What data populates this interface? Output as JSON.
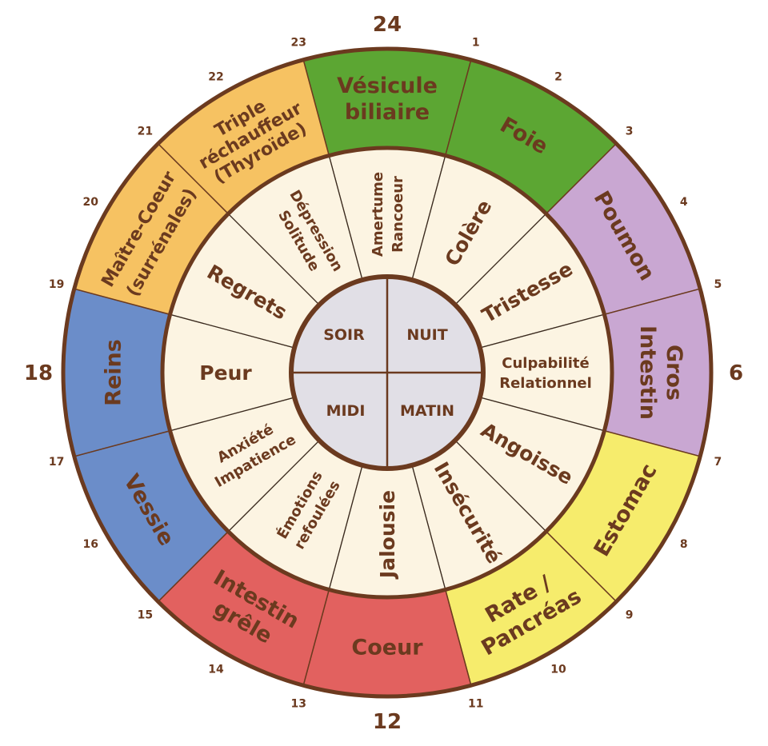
{
  "colors": {
    "brown": "#6b3a1f",
    "cream": "#fcf4e2",
    "center": "#e1dfe6",
    "green": "#5ca633",
    "purple": "#c9a7d2",
    "yellow": "#f6ec6c",
    "red": "#e2615f",
    "blue": "#6b8dc9",
    "orange": "#f6c262"
  },
  "organs": [
    {
      "hour": 0,
      "lines": [
        "Vésicule",
        "biliaire"
      ],
      "color": "green"
    },
    {
      "hour": 2,
      "lines": [
        "Foie"
      ],
      "color": "green"
    },
    {
      "hour": 4,
      "lines": [
        "Poumon"
      ],
      "color": "purple"
    },
    {
      "hour": 6,
      "lines": [
        "Gros",
        "Intestin"
      ],
      "color": "purple"
    },
    {
      "hour": 8,
      "lines": [
        "Estomac"
      ],
      "color": "yellow"
    },
    {
      "hour": 10,
      "lines": [
        "Rate /",
        "Pancréas"
      ],
      "color": "yellow"
    },
    {
      "hour": 12,
      "lines": [
        "Coeur"
      ],
      "color": "red"
    },
    {
      "hour": 14,
      "lines": [
        "Intestin",
        "grêle"
      ],
      "color": "red"
    },
    {
      "hour": 16,
      "lines": [
        "Vessie"
      ],
      "color": "blue"
    },
    {
      "hour": 18,
      "lines": [
        "Reins"
      ],
      "color": "blue"
    },
    {
      "hour": 20,
      "lines": [
        "Maître-Coeur",
        "(surrénales)"
      ],
      "color": "orange"
    },
    {
      "hour": 22,
      "lines": [
        "Triple",
        "réchauffeur",
        "(Thyroïde)"
      ],
      "color": "orange"
    }
  ],
  "emotions": [
    {
      "hour": 0,
      "lines": [
        "Amertume",
        "Rancoeur"
      ]
    },
    {
      "hour": 2,
      "lines": [
        "Colère"
      ]
    },
    {
      "hour": 4,
      "lines": [
        "Tristesse"
      ]
    },
    {
      "hour": 6,
      "lines": [
        "Culpabilité",
        "Relationnel"
      ]
    },
    {
      "hour": 8,
      "lines": [
        "Angoisse"
      ]
    },
    {
      "hour": 10,
      "lines": [
        "Insécurité"
      ]
    },
    {
      "hour": 12,
      "lines": [
        "Jalousie"
      ]
    },
    {
      "hour": 14,
      "lines": [
        "Émotions",
        "refoulées"
      ]
    },
    {
      "hour": 16,
      "lines": [
        "Anxiété",
        "Impatience"
      ]
    },
    {
      "hour": 18,
      "lines": [
        "Peur"
      ]
    },
    {
      "hour": 20,
      "lines": [
        "Regrets"
      ]
    },
    {
      "hour": 22,
      "lines": [
        "Dépression",
        "Solitude"
      ]
    }
  ],
  "periods": {
    "top_left": "SOIR",
    "top_right": "NUIT",
    "bottom_left": "MIDI",
    "bottom_right": "MATIN"
  },
  "hours": [
    "24",
    "1",
    "2",
    "3",
    "4",
    "5",
    "6",
    "7",
    "8",
    "9",
    "10",
    "11",
    "12",
    "13",
    "14",
    "15",
    "16",
    "17",
    "18",
    "19",
    "20",
    "21",
    "22",
    "23"
  ],
  "major_hours": [
    "24",
    "6",
    "12",
    "18"
  ]
}
